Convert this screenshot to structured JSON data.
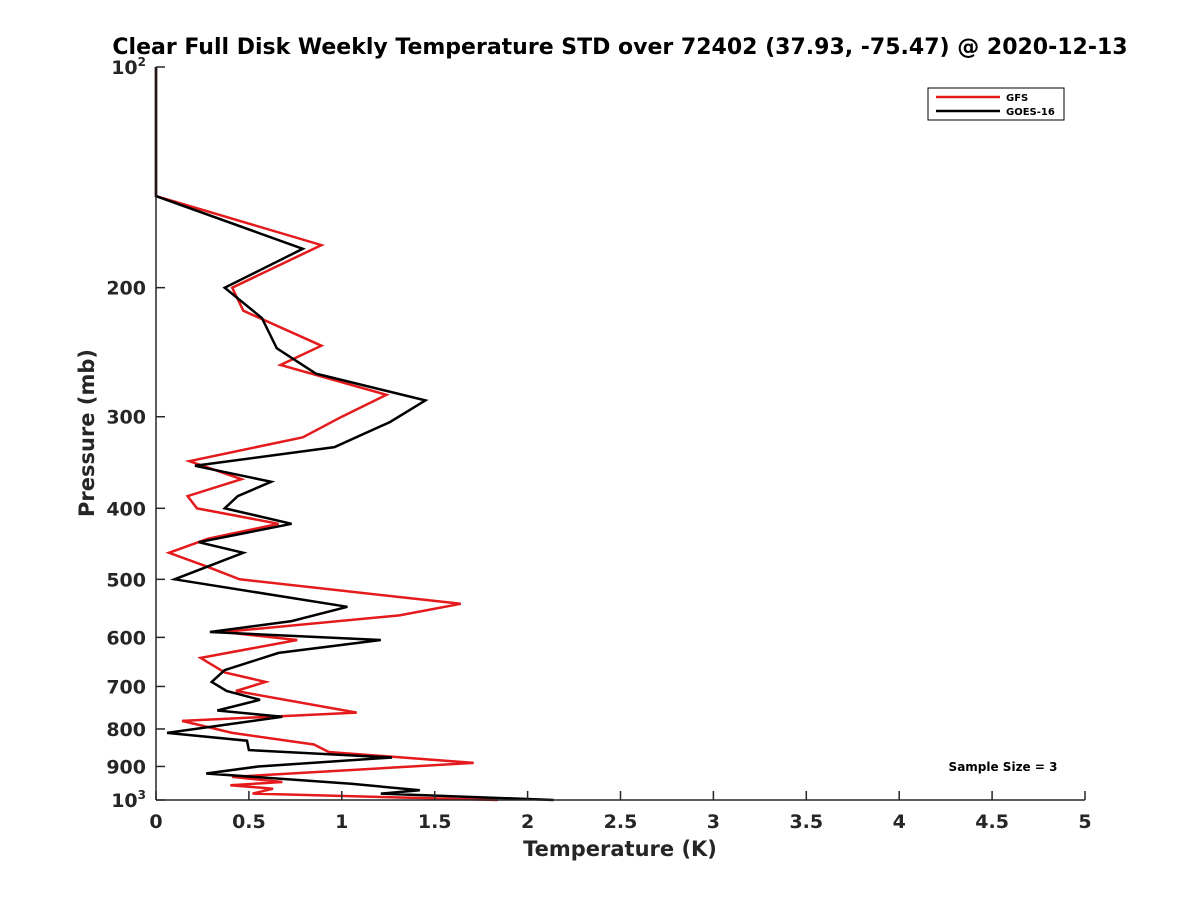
{
  "chart_data": {
    "type": "line",
    "title": "Clear Full Disk Weekly Temperature STD over 72402 (37.93, -75.47) @ 2020-12-13",
    "xlabel": "Temperature (K)",
    "ylabel": "Pressure (mb)",
    "xlim": [
      0,
      5
    ],
    "ylim": [
      100,
      1000
    ],
    "y_scale": "log",
    "y_reversed": true,
    "x_ticks": [
      "0",
      "0.5",
      "1",
      "1.5",
      "2",
      "2.5",
      "3",
      "3.5",
      "4",
      "4.5",
      "5"
    ],
    "y_ticks": [
      {
        "value": 100,
        "base": "10",
        "exp": "2"
      },
      {
        "value": 200,
        "label": "200"
      },
      {
        "value": 300,
        "label": "300"
      },
      {
        "value": 400,
        "label": "400"
      },
      {
        "value": 500,
        "label": "500"
      },
      {
        "value": 600,
        "label": "600"
      },
      {
        "value": 700,
        "label": "700"
      },
      {
        "value": 800,
        "label": "800"
      },
      {
        "value": 900,
        "label": "900"
      },
      {
        "value": 1000,
        "base": "10",
        "exp": "3"
      }
    ],
    "grid": false,
    "legend_position": "top-right",
    "annotation": "Sample Size = 3",
    "series": [
      {
        "name": "GFS",
        "color": "#e41a1c",
        "points": [
          [
            0,
            100
          ],
          [
            0,
            150
          ],
          [
            0.89,
            175
          ],
          [
            0.41,
            200
          ],
          [
            0.47,
            215
          ],
          [
            0.89,
            240
          ],
          [
            0.67,
            255
          ],
          [
            1.24,
            280
          ],
          [
            1.0,
            300
          ],
          [
            0.79,
            320
          ],
          [
            0.18,
            345
          ],
          [
            0.46,
            365
          ],
          [
            0.17,
            385
          ],
          [
            0.22,
            400
          ],
          [
            0.66,
            420
          ],
          [
            0.28,
            440
          ],
          [
            0.07,
            460
          ],
          [
            0.27,
            480
          ],
          [
            0.45,
            500
          ],
          [
            1.64,
            540
          ],
          [
            1.31,
            560
          ],
          [
            0.36,
            590
          ],
          [
            0.76,
            605
          ],
          [
            0.24,
            640
          ],
          [
            0.37,
            670
          ],
          [
            0.59,
            690
          ],
          [
            0.43,
            710
          ],
          [
            1.08,
            760
          ],
          [
            0.14,
            780
          ],
          [
            0.41,
            810
          ],
          [
            0.85,
            840
          ],
          [
            0.93,
            860
          ],
          [
            1.71,
            890
          ],
          [
            0.41,
            930
          ],
          [
            0.68,
            945
          ],
          [
            0.4,
            955
          ],
          [
            0.63,
            965
          ],
          [
            0.52,
            980
          ],
          [
            1.84,
            1000
          ]
        ]
      },
      {
        "name": "GOES-16",
        "color": "#000000",
        "points": [
          [
            0,
            100
          ],
          [
            0,
            150
          ],
          [
            0.79,
            177
          ],
          [
            0.37,
            200
          ],
          [
            0.57,
            220
          ],
          [
            0.65,
            242
          ],
          [
            0.86,
            262
          ],
          [
            1.45,
            285
          ],
          [
            1.26,
            305
          ],
          [
            0.96,
            330
          ],
          [
            0.21,
            350
          ],
          [
            0.62,
            368
          ],
          [
            0.44,
            385
          ],
          [
            0.37,
            400
          ],
          [
            0.73,
            420
          ],
          [
            0.23,
            445
          ],
          [
            0.47,
            460
          ],
          [
            0.1,
            500
          ],
          [
            1.03,
            545
          ],
          [
            0.73,
            570
          ],
          [
            0.29,
            590
          ],
          [
            1.21,
            605
          ],
          [
            0.66,
            630
          ],
          [
            0.37,
            665
          ],
          [
            0.3,
            690
          ],
          [
            0.38,
            710
          ],
          [
            0.56,
            730
          ],
          [
            0.33,
            755
          ],
          [
            0.68,
            770
          ],
          [
            0.06,
            810
          ],
          [
            0.49,
            830
          ],
          [
            0.5,
            855
          ],
          [
            1.27,
            875
          ],
          [
            0.55,
            900
          ],
          [
            0.27,
            920
          ],
          [
            1.05,
            950
          ],
          [
            1.42,
            970
          ],
          [
            1.21,
            980
          ],
          [
            2.14,
            1000
          ]
        ]
      }
    ]
  }
}
